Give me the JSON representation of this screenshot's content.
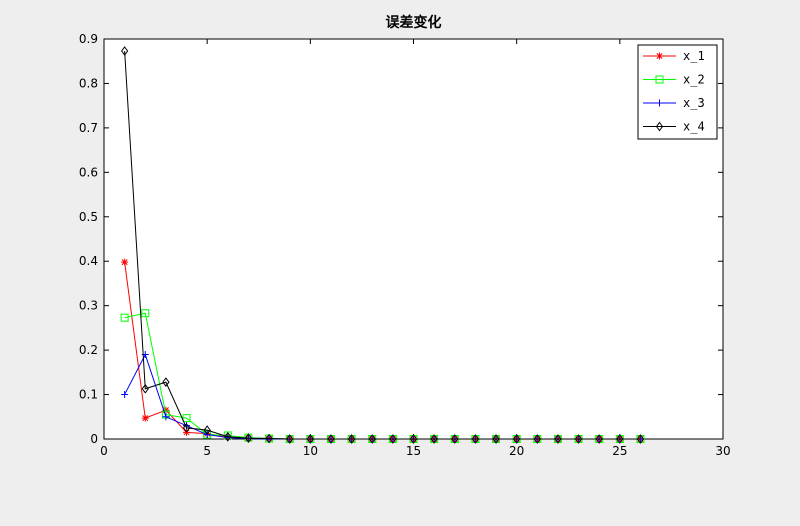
{
  "chart_data": {
    "type": "line",
    "title": "误差变化",
    "xlabel": "",
    "ylabel": "",
    "xlim": [
      0,
      30
    ],
    "ylim": [
      0,
      0.9
    ],
    "xticks": [
      0,
      5,
      10,
      15,
      20,
      25,
      30
    ],
    "yticks": [
      0,
      0.1,
      0.2,
      0.3,
      0.4,
      0.5,
      0.6,
      0.7,
      0.8,
      0.9
    ],
    "grid": false,
    "legend_position": "top-right",
    "x": [
      1,
      2,
      3,
      4,
      5,
      6,
      7,
      8,
      9,
      10,
      11,
      12,
      13,
      14,
      15,
      16,
      17,
      18,
      19,
      20,
      21,
      22,
      23,
      24,
      25,
      26
    ],
    "series": [
      {
        "name": "x_1",
        "color": "#ff0000",
        "marker": "asterisk",
        "values": [
          0.398,
          0.047,
          0.065,
          0.015,
          0.012,
          0.004,
          0.002,
          0.001,
          0,
          0,
          0,
          0,
          0,
          0,
          0,
          0,
          0,
          0,
          0,
          0,
          0,
          0,
          0,
          0,
          0,
          0
        ]
      },
      {
        "name": "x_2",
        "color": "#00ff00",
        "marker": "square",
        "values": [
          0.273,
          0.283,
          0.055,
          0.047,
          0.01,
          0.008,
          0.003,
          0.001,
          0,
          0,
          0,
          0,
          0,
          0,
          0,
          0,
          0,
          0,
          0,
          0,
          0,
          0,
          0,
          0,
          0,
          0
        ]
      },
      {
        "name": "x_3",
        "color": "#0000ff",
        "marker": "plus",
        "values": [
          0.1,
          0.19,
          0.05,
          0.03,
          0.01,
          0.003,
          0.001,
          0,
          0,
          0,
          0,
          0,
          0,
          0,
          0,
          0,
          0,
          0,
          0,
          0,
          0,
          0,
          0,
          0,
          0,
          0
        ]
      },
      {
        "name": "x_4",
        "color": "#000000",
        "marker": "diamond",
        "values": [
          0.873,
          0.113,
          0.128,
          0.025,
          0.02,
          0.005,
          0.002,
          0.001,
          0,
          0,
          0,
          0,
          0,
          0,
          0,
          0,
          0,
          0,
          0,
          0,
          0,
          0,
          0,
          0,
          0,
          0
        ]
      }
    ]
  }
}
